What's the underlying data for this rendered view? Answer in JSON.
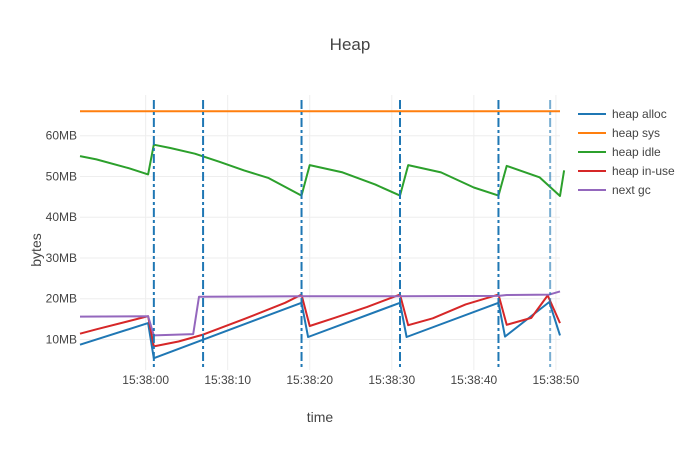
{
  "chart_data": {
    "type": "line",
    "title": "Heap",
    "xlabel": "time",
    "ylabel": "bytes",
    "x_ticks": [
      "15:38:00",
      "15:38:10",
      "15:38:20",
      "15:38:30",
      "15:38:40",
      "15:38:50"
    ],
    "y_ticks": [
      "10MB",
      "20MB",
      "30MB",
      "40MB",
      "50MB",
      "60MB"
    ],
    "xlim": [
      -8,
      50.5
    ],
    "ylim": [
      2.5,
      70
    ],
    "grid": true,
    "legend_position": "top-right",
    "gc_markers": [
      1,
      7,
      19,
      31,
      43,
      49.3
    ],
    "series": [
      {
        "name": "heap alloc",
        "color": "#1f77b4",
        "points": [
          [
            -8,
            8.7
          ],
          [
            0.3,
            14
          ],
          [
            1,
            5.4
          ],
          [
            19,
            19
          ],
          [
            19.8,
            10.6
          ],
          [
            31,
            19
          ],
          [
            31.8,
            10.6
          ],
          [
            43,
            19
          ],
          [
            43.8,
            10.7
          ],
          [
            49.2,
            19.2
          ],
          [
            50.5,
            11
          ]
        ]
      },
      {
        "name": "heap sys",
        "color": "#ff7f0e",
        "points": [
          [
            -8,
            66
          ],
          [
            50.5,
            66
          ]
        ]
      },
      {
        "name": "heap idle",
        "color": "#2ca02c",
        "points": [
          [
            -8,
            55
          ],
          [
            -6,
            54.2
          ],
          [
            -2,
            52
          ],
          [
            0.3,
            50.5
          ],
          [
            1,
            57.8
          ],
          [
            3,
            57
          ],
          [
            6,
            55.6
          ],
          [
            9,
            53.6
          ],
          [
            12,
            51.5
          ],
          [
            15,
            49.6
          ],
          [
            19,
            45.3
          ],
          [
            20,
            52.8
          ],
          [
            24,
            51
          ],
          [
            28,
            48
          ],
          [
            31,
            45.3
          ],
          [
            32,
            52.8
          ],
          [
            36,
            51
          ],
          [
            40,
            47.3
          ],
          [
            43,
            45.3
          ],
          [
            44,
            52.6
          ],
          [
            48,
            49.8
          ],
          [
            50.5,
            45.2
          ],
          [
            51,
            51.5
          ]
        ]
      },
      {
        "name": "heap in-use",
        "color": "#d62728",
        "points": [
          [
            -8,
            11.4
          ],
          [
            -6,
            12.5
          ],
          [
            0.3,
            15.7
          ],
          [
            1,
            8.3
          ],
          [
            4,
            9.5
          ],
          [
            7,
            11.2
          ],
          [
            12,
            15
          ],
          [
            17,
            19
          ],
          [
            19,
            21
          ],
          [
            20,
            13.3
          ],
          [
            23,
            15.3
          ],
          [
            27,
            18
          ],
          [
            31,
            21
          ],
          [
            32,
            13.5
          ],
          [
            35,
            15.2
          ],
          [
            39,
            18.6
          ],
          [
            43,
            21
          ],
          [
            44,
            13.6
          ],
          [
            47,
            15.3
          ],
          [
            49,
            20.8
          ],
          [
            50.5,
            14
          ]
        ]
      },
      {
        "name": "next gc",
        "color": "#9467bd",
        "points": [
          [
            -8,
            15.6
          ],
          [
            0.3,
            15.7
          ],
          [
            1,
            11
          ],
          [
            5.8,
            11.3
          ],
          [
            6.5,
            20.5
          ],
          [
            19,
            20.6
          ],
          [
            31,
            20.6
          ],
          [
            43,
            20.7
          ],
          [
            44,
            20.9
          ],
          [
            49.2,
            21
          ],
          [
            50.5,
            21.8
          ]
        ]
      }
    ]
  }
}
